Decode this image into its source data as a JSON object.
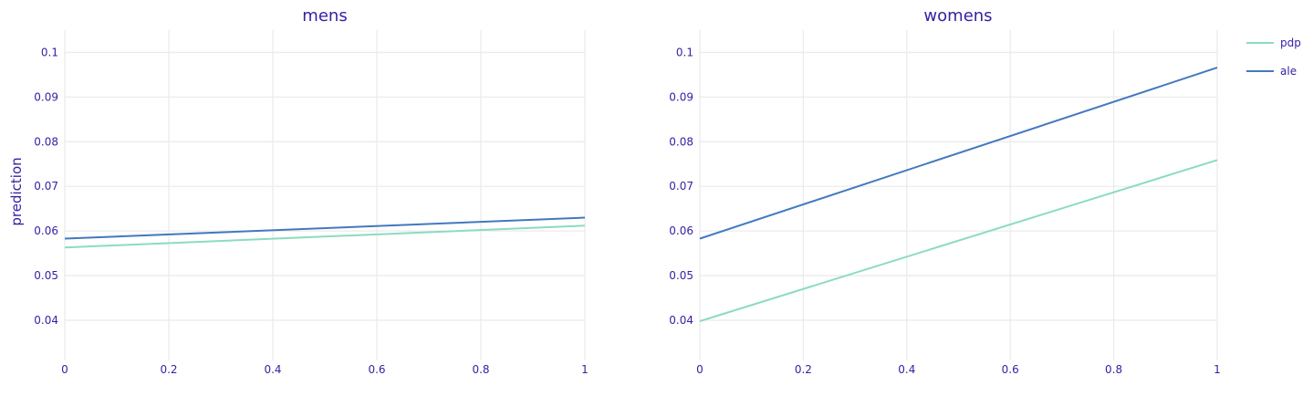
{
  "chart_data": {
    "type": "line",
    "ylabel": "prediction",
    "x_ticks": [
      "0",
      "0.2",
      "0.4",
      "0.6",
      "0.8",
      "1"
    ],
    "y_ticks": [
      "0.04",
      "0.05",
      "0.06",
      "0.07",
      "0.08",
      "0.09",
      "0.1"
    ],
    "xlim": [
      0,
      1
    ],
    "ylim": [
      0.031,
      0.105
    ],
    "grid": true,
    "legend_position": "top-right",
    "legend": [
      {
        "name": "pdp",
        "color": "#8bdcbe"
      },
      {
        "name": "ale",
        "color": "#4378bf"
      }
    ],
    "panels": [
      {
        "title": "mens",
        "series": [
          {
            "name": "pdp",
            "color": "#8bdcbe",
            "x": [
              0,
              1
            ],
            "y": [
              0.0563,
              0.0612
            ]
          },
          {
            "name": "ale",
            "color": "#4378bf",
            "x": [
              0,
              1
            ],
            "y": [
              0.0583,
              0.063
            ]
          }
        ]
      },
      {
        "title": "womens",
        "series": [
          {
            "name": "pdp",
            "color": "#8bdcbe",
            "x": [
              0,
              1
            ],
            "y": [
              0.0398,
              0.0759
            ]
          },
          {
            "name": "ale",
            "color": "#4378bf",
            "x": [
              0,
              1
            ],
            "y": [
              0.0583,
              0.0966
            ]
          }
        ]
      }
    ]
  }
}
